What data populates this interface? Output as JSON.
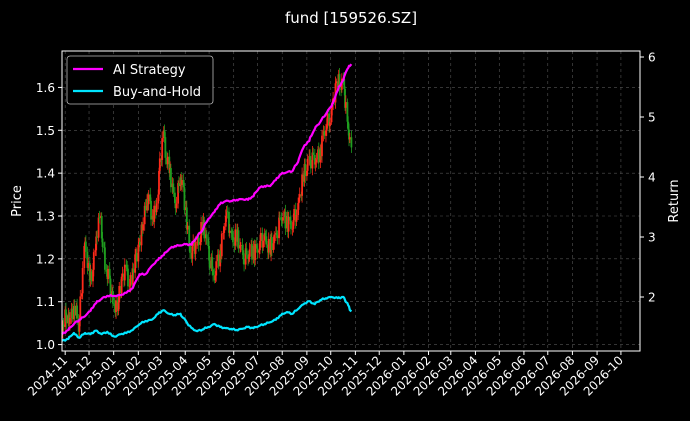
{
  "chart_data": {
    "type": "line",
    "title": "fund [159526.SZ]",
    "ylabel_left": "Price",
    "ylabel_right": "Return",
    "xlabel": "",
    "x_tick_labels": [
      "2024-11",
      "2024-12",
      "2025-01",
      "2025-02",
      "2025-03",
      "2025-04",
      "2025-05",
      "2025-06",
      "2025-07",
      "2025-08",
      "2025-09",
      "2025-10",
      "2025-11",
      "2025-12",
      "2026-01",
      "2026-02",
      "2026-03",
      "2026-04",
      "2026-05",
      "2026-06",
      "2026-07",
      "2026-08",
      "2026-09",
      "2026-10"
    ],
    "y_left_ticks": [
      "1.0",
      "1.1",
      "1.2",
      "1.3",
      "1.4",
      "1.5",
      "1.6"
    ],
    "y_right_ticks": [
      "2",
      "3",
      "4",
      "5",
      "6"
    ],
    "ylim_left": [
      0.985,
      1.685
    ],
    "ylim_right": [
      1.1,
      6.1
    ],
    "grid": true,
    "legend_position": "top-left",
    "colors": {
      "background": "#000000",
      "ai_strategy": "#ff00ff",
      "buy_and_hold": "#00e5ff",
      "candle_up": "#ff2a1a",
      "candle_down": "#1f9e1f",
      "grid": "#555555"
    },
    "price_candles_close": [
      [
        "2024-10-28",
        1.03
      ],
      [
        "2024-11-05",
        1.07
      ],
      [
        "2024-11-12",
        1.09
      ],
      [
        "2024-11-18",
        1.03
      ],
      [
        "2024-11-25",
        1.23
      ],
      [
        "2024-12-02",
        1.15
      ],
      [
        "2024-12-09",
        1.22
      ],
      [
        "2024-12-16",
        1.3
      ],
      [
        "2024-12-23",
        1.17
      ],
      [
        "2025-01-02",
        1.09
      ],
      [
        "2025-01-10",
        1.12
      ],
      [
        "2025-01-17",
        1.18
      ],
      [
        "2025-01-24",
        1.14
      ],
      [
        "2025-02-05",
        1.28
      ],
      [
        "2025-02-12",
        1.34
      ],
      [
        "2025-02-19",
        1.3
      ],
      [
        "2025-02-26",
        1.35
      ],
      [
        "2025-03-05",
        1.5
      ],
      [
        "2025-03-12",
        1.4
      ],
      [
        "2025-03-19",
        1.33
      ],
      [
        "2025-03-26",
        1.39
      ],
      [
        "2025-04-02",
        1.32
      ],
      [
        "2025-04-09",
        1.2
      ],
      [
        "2025-04-16",
        1.24
      ],
      [
        "2025-04-23",
        1.27
      ],
      [
        "2025-04-30",
        1.23
      ],
      [
        "2025-05-08",
        1.15
      ],
      [
        "2025-05-15",
        1.22
      ],
      [
        "2025-05-22",
        1.3
      ],
      [
        "2025-05-29",
        1.26
      ],
      [
        "2025-06-05",
        1.24
      ],
      [
        "2025-06-12",
        1.22
      ],
      [
        "2025-06-19",
        1.2
      ],
      [
        "2025-06-26",
        1.23
      ],
      [
        "2025-07-03",
        1.22
      ],
      [
        "2025-07-10",
        1.26
      ],
      [
        "2025-07-17",
        1.21
      ],
      [
        "2025-07-24",
        1.26
      ],
      [
        "2025-07-31",
        1.29
      ],
      [
        "2025-08-07",
        1.3
      ],
      [
        "2025-08-14",
        1.27
      ],
      [
        "2025-08-21",
        1.33
      ],
      [
        "2025-08-28",
        1.38
      ],
      [
        "2025-09-04",
        1.44
      ],
      [
        "2025-09-11",
        1.42
      ],
      [
        "2025-09-18",
        1.46
      ],
      [
        "2025-09-25",
        1.5
      ],
      [
        "2025-10-02",
        1.55
      ],
      [
        "2025-10-10",
        1.6
      ],
      [
        "2025-10-17",
        1.62
      ],
      [
        "2025-10-22",
        1.52
      ],
      [
        "2025-10-27",
        1.46
      ]
    ],
    "series": [
      {
        "name": "AI Strategy",
        "axis": "right",
        "points": [
          [
            "2024-10-28",
            1.38
          ],
          [
            "2024-11-05",
            1.45
          ],
          [
            "2024-11-12",
            1.55
          ],
          [
            "2024-11-19",
            1.62
          ],
          [
            "2024-11-26",
            1.68
          ],
          [
            "2024-12-03",
            1.77
          ],
          [
            "2024-12-10",
            1.9
          ],
          [
            "2024-12-17",
            1.97
          ],
          [
            "2024-12-24",
            2.02
          ],
          [
            "2025-01-02",
            2.02
          ],
          [
            "2025-01-10",
            2.03
          ],
          [
            "2025-01-17",
            2.07
          ],
          [
            "2025-01-25",
            2.15
          ],
          [
            "2025-02-03",
            2.38
          ],
          [
            "2025-02-10",
            2.38
          ],
          [
            "2025-02-18",
            2.52
          ],
          [
            "2025-02-26",
            2.62
          ],
          [
            "2025-03-05",
            2.7
          ],
          [
            "2025-03-12",
            2.8
          ],
          [
            "2025-03-19",
            2.85
          ],
          [
            "2025-03-26",
            2.86
          ],
          [
            "2025-04-02",
            2.88
          ],
          [
            "2025-04-09",
            2.87
          ],
          [
            "2025-04-16",
            3.0
          ],
          [
            "2025-04-23",
            3.12
          ],
          [
            "2025-04-30",
            3.3
          ],
          [
            "2025-05-08",
            3.42
          ],
          [
            "2025-05-15",
            3.55
          ],
          [
            "2025-05-22",
            3.6
          ],
          [
            "2025-05-29",
            3.6
          ],
          [
            "2025-06-05",
            3.62
          ],
          [
            "2025-06-12",
            3.63
          ],
          [
            "2025-06-19",
            3.62
          ],
          [
            "2025-06-26",
            3.68
          ],
          [
            "2025-07-03",
            3.82
          ],
          [
            "2025-07-10",
            3.85
          ],
          [
            "2025-07-17",
            3.85
          ],
          [
            "2025-07-24",
            3.95
          ],
          [
            "2025-07-31",
            4.05
          ],
          [
            "2025-08-07",
            4.08
          ],
          [
            "2025-08-14",
            4.1
          ],
          [
            "2025-08-21",
            4.25
          ],
          [
            "2025-08-28",
            4.5
          ],
          [
            "2025-09-04",
            4.6
          ],
          [
            "2025-09-11",
            4.8
          ],
          [
            "2025-09-18",
            4.92
          ],
          [
            "2025-09-25",
            5.05
          ],
          [
            "2025-10-02",
            5.18
          ],
          [
            "2025-10-10",
            5.45
          ],
          [
            "2025-10-17",
            5.62
          ],
          [
            "2025-10-22",
            5.8
          ],
          [
            "2025-10-27",
            5.88
          ]
        ]
      },
      {
        "name": "Buy-and-Hold",
        "axis": "right",
        "points": [
          [
            "2024-10-28",
            1.27
          ],
          [
            "2024-11-05",
            1.3
          ],
          [
            "2024-11-12",
            1.4
          ],
          [
            "2024-11-19",
            1.32
          ],
          [
            "2024-11-26",
            1.4
          ],
          [
            "2024-12-03",
            1.38
          ],
          [
            "2024-12-10",
            1.44
          ],
          [
            "2024-12-17",
            1.38
          ],
          [
            "2024-12-24",
            1.42
          ],
          [
            "2025-01-02",
            1.34
          ],
          [
            "2025-01-10",
            1.38
          ],
          [
            "2025-01-17",
            1.4
          ],
          [
            "2025-01-25",
            1.45
          ],
          [
            "2025-02-03",
            1.55
          ],
          [
            "2025-02-10",
            1.6
          ],
          [
            "2025-02-18",
            1.62
          ],
          [
            "2025-02-26",
            1.72
          ],
          [
            "2025-03-05",
            1.78
          ],
          [
            "2025-03-12",
            1.72
          ],
          [
            "2025-03-19",
            1.7
          ],
          [
            "2025-03-26",
            1.72
          ],
          [
            "2025-04-02",
            1.6
          ],
          [
            "2025-04-09",
            1.48
          ],
          [
            "2025-04-16",
            1.43
          ],
          [
            "2025-04-23",
            1.46
          ],
          [
            "2025-04-30",
            1.5
          ],
          [
            "2025-05-08",
            1.55
          ],
          [
            "2025-05-15",
            1.5
          ],
          [
            "2025-05-22",
            1.48
          ],
          [
            "2025-05-29",
            1.47
          ],
          [
            "2025-06-05",
            1.45
          ],
          [
            "2025-06-12",
            1.47
          ],
          [
            "2025-06-19",
            1.5
          ],
          [
            "2025-06-26",
            1.48
          ],
          [
            "2025-07-03",
            1.52
          ],
          [
            "2025-07-10",
            1.55
          ],
          [
            "2025-07-17",
            1.58
          ],
          [
            "2025-07-24",
            1.62
          ],
          [
            "2025-07-31",
            1.7
          ],
          [
            "2025-08-07",
            1.75
          ],
          [
            "2025-08-14",
            1.72
          ],
          [
            "2025-08-21",
            1.8
          ],
          [
            "2025-08-28",
            1.88
          ],
          [
            "2025-09-04",
            1.93
          ],
          [
            "2025-09-11",
            1.88
          ],
          [
            "2025-09-18",
            1.95
          ],
          [
            "2025-09-25",
            1.98
          ],
          [
            "2025-10-02",
            2.0
          ],
          [
            "2025-10-10",
            1.98
          ],
          [
            "2025-10-17",
            2.0
          ],
          [
            "2025-10-22",
            1.9
          ],
          [
            "2025-10-27",
            1.76
          ]
        ]
      }
    ]
  }
}
